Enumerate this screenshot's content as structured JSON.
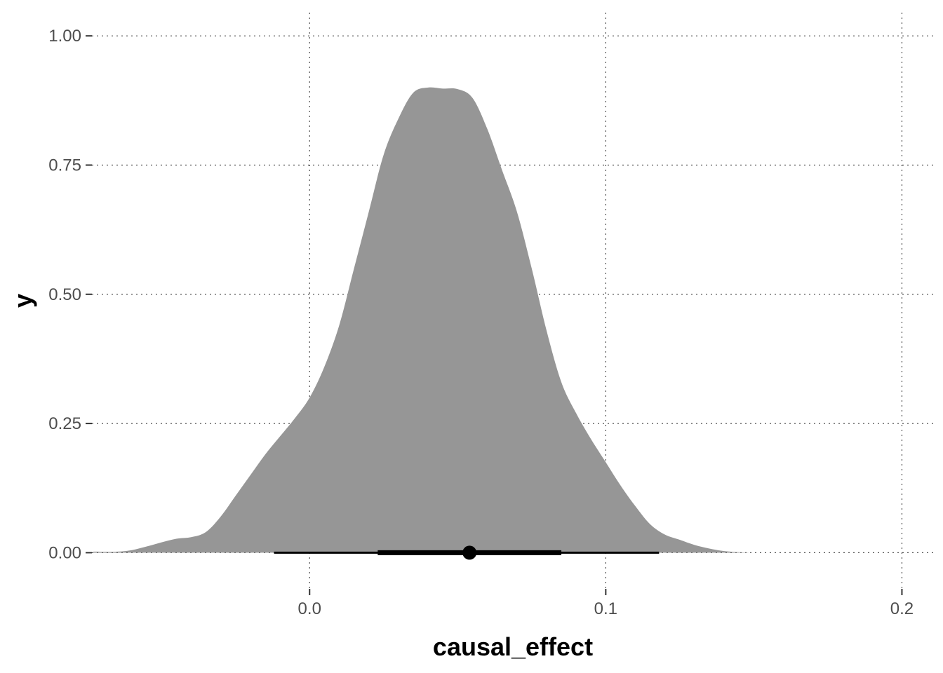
{
  "chart_data": {
    "type": "area",
    "title": "",
    "xlabel": "causal_effect",
    "ylabel": "y",
    "xlim": [
      -0.0735,
      0.2115
    ],
    "ylim": [
      -0.07,
      1.045
    ],
    "x_ticks": [
      0.0,
      0.1,
      0.2
    ],
    "x_tick_labels": [
      "0.0",
      "0.1",
      "0.2"
    ],
    "y_ticks": [
      0.0,
      0.25,
      0.5,
      0.75,
      1.0
    ],
    "y_tick_labels": [
      "0.00",
      "0.25",
      "0.50",
      "0.75",
      "1.00"
    ],
    "grid": true,
    "density": {
      "x": [
        -0.073,
        -0.065,
        -0.06,
        -0.055,
        -0.05,
        -0.045,
        -0.04,
        -0.035,
        -0.03,
        -0.025,
        -0.02,
        -0.015,
        -0.01,
        -0.005,
        0.0,
        0.005,
        0.01,
        0.015,
        0.02,
        0.025,
        0.03,
        0.035,
        0.04,
        0.045,
        0.05,
        0.055,
        0.06,
        0.065,
        0.07,
        0.075,
        0.08,
        0.085,
        0.09,
        0.095,
        0.1,
        0.105,
        0.11,
        0.115,
        0.12,
        0.125,
        0.13,
        0.135,
        0.14,
        0.145,
        0.15,
        0.16,
        0.17,
        0.18,
        0.19,
        0.2
      ],
      "y": [
        0.002,
        0.002,
        0.005,
        0.012,
        0.02,
        0.027,
        0.03,
        0.04,
        0.07,
        0.11,
        0.15,
        0.19,
        0.225,
        0.26,
        0.3,
        0.36,
        0.44,
        0.55,
        0.66,
        0.77,
        0.84,
        0.89,
        0.9,
        0.898,
        0.897,
        0.88,
        0.82,
        0.74,
        0.66,
        0.55,
        0.43,
        0.33,
        0.27,
        0.22,
        0.175,
        0.13,
        0.09,
        0.055,
        0.035,
        0.025,
        0.015,
        0.008,
        0.003,
        0.001,
        0.0,
        0.0,
        0.0,
        0.0,
        0.0,
        0.0
      ],
      "fill": "#969696"
    },
    "point_interval": {
      "point": 0.054,
      "inner": [
        0.023,
        0.085
      ],
      "outer": [
        -0.012,
        0.118
      ],
      "color": "#000000"
    }
  }
}
